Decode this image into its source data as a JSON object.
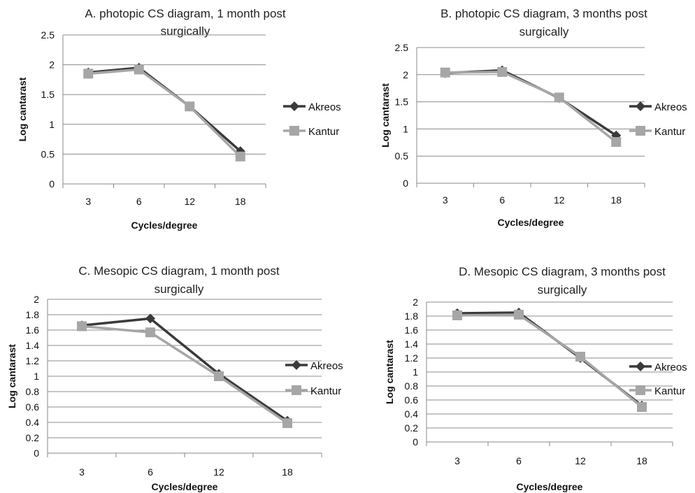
{
  "colors": {
    "Akreos": "#3a3a3a",
    "Kantur": "#a6a6a6",
    "grid": "#8c8c8c",
    "axis": "#888888"
  },
  "chart_data": [
    {
      "type": "line",
      "title": [
        "A. photopic CS diagram, 1 month post",
        "surgically"
      ],
      "xlabel": "Cycles/degree",
      "ylabel": "Log  cantarast",
      "categories": [
        "3",
        "6",
        "12",
        "18"
      ],
      "ylim": [
        0,
        2.5
      ],
      "yticks": [
        "0",
        "0.5",
        "1",
        "1.5",
        "2",
        "2.5"
      ],
      "grid": true,
      "legend": "right",
      "series": [
        {
          "name": "Akreos",
          "marker": "diamond",
          "values": [
            1.87,
            1.95,
            1.3,
            0.55
          ]
        },
        {
          "name": "Kantur",
          "marker": "square",
          "values": [
            1.85,
            1.92,
            1.3,
            0.46
          ]
        }
      ]
    },
    {
      "type": "line",
      "title": [
        "B. photopic CS diagram, 3 months post",
        "surgically"
      ],
      "xlabel": "Cycles/degree",
      "ylabel": "Log  cantarast",
      "categories": [
        "3",
        "6",
        "12",
        "18"
      ],
      "ylim": [
        0,
        2.5
      ],
      "yticks": [
        "0",
        "0.5",
        "1",
        "1.5",
        "2",
        "2.5"
      ],
      "grid": true,
      "legend": "right",
      "series": [
        {
          "name": "Akreos",
          "marker": "diamond",
          "values": [
            2.03,
            2.08,
            1.57,
            0.88
          ]
        },
        {
          "name": "Kantur",
          "marker": "square",
          "values": [
            2.04,
            2.05,
            1.58,
            0.76
          ]
        }
      ]
    },
    {
      "type": "line",
      "title": [
        "C. Mesopic CS diagram, 1 month post",
        "surgically"
      ],
      "xlabel": "Cycles/degree",
      "ylabel": "Log  cantarast",
      "categories": [
        "3",
        "6",
        "12",
        "18"
      ],
      "ylim": [
        0,
        2
      ],
      "yticks": [
        "0",
        "0.2",
        "0.4",
        "0.6",
        "0.8",
        "1",
        "1.2",
        "1.4",
        "1.6",
        "1.8",
        "2"
      ],
      "grid": true,
      "legend": "right",
      "series": [
        {
          "name": "Akreos",
          "marker": "diamond",
          "values": [
            1.66,
            1.75,
            1.03,
            0.42
          ]
        },
        {
          "name": "Kantur",
          "marker": "square",
          "values": [
            1.65,
            1.57,
            1.0,
            0.39
          ]
        }
      ]
    },
    {
      "type": "line",
      "title": [
        "D. Mesopic CS diagram, 3 months post",
        "surgically"
      ],
      "xlabel": "Cycles/degree",
      "ylabel": "Log  cantarast",
      "categories": [
        "3",
        "6",
        "12",
        "18"
      ],
      "ylim": [
        0,
        2
      ],
      "yticks": [
        "0",
        "0.2",
        "0.4",
        "0.6",
        "0.8",
        "1",
        "1.2",
        "1.4",
        "1.6",
        "1.8",
        "2"
      ],
      "grid": true,
      "legend": "right",
      "series": [
        {
          "name": "Akreos",
          "marker": "diamond",
          "values": [
            1.84,
            1.85,
            1.2,
            0.52
          ]
        },
        {
          "name": "Kantur",
          "marker": "square",
          "values": [
            1.81,
            1.82,
            1.22,
            0.5
          ]
        }
      ]
    }
  ]
}
